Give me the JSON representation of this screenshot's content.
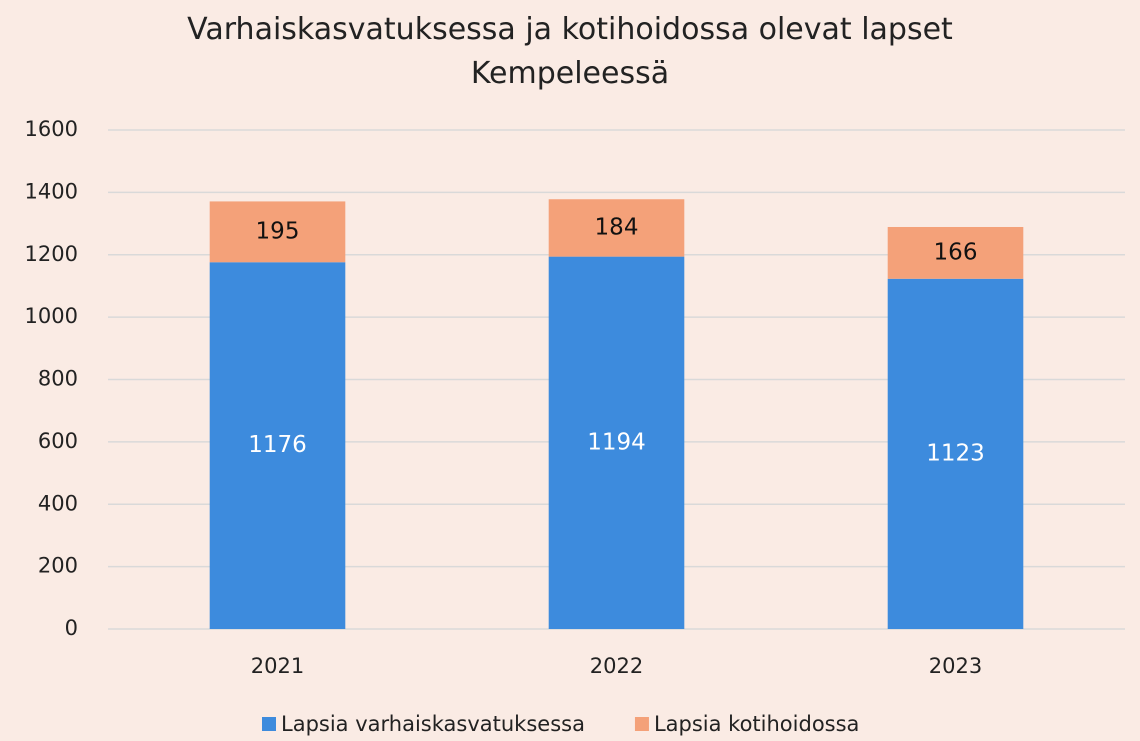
{
  "chart_data": {
    "type": "stacked_bar",
    "title": "Varhaiskasvatuksessa ja kotihoidossa olevat lapset Kempeleessä",
    "categories": [
      "2021",
      "2022",
      "2023"
    ],
    "series": [
      {
        "name": "Lapsia varhaiskasvatuksessa",
        "color": "#3d8bdd",
        "label_color": "#ffffff",
        "values": [
          1176,
          1194,
          1123
        ]
      },
      {
        "name": "Lapsia kotihoidossa",
        "color": "#f4a179",
        "label_color": "#111111",
        "values": [
          195,
          184,
          166
        ]
      }
    ],
    "ylim": [
      0,
      1600
    ],
    "yticks": [
      0,
      200,
      400,
      600,
      800,
      1000,
      1200,
      1400,
      1600
    ],
    "grid": true,
    "legend": "bottom"
  }
}
